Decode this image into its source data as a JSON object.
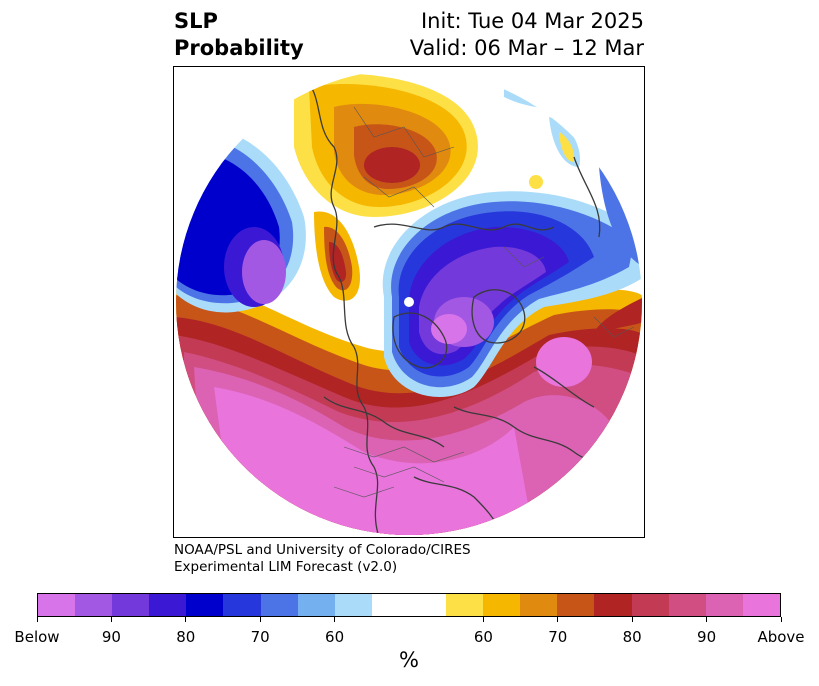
{
  "header": {
    "variable": "SLP",
    "field": "Probability",
    "init": "Init: Tue 04 Mar 2025",
    "valid": "Valid: 06 Mar – 12 Mar"
  },
  "credit": {
    "line1": "NOAA/PSL and University of Colorado/CIRES",
    "line2": "Experimental LIM Forecast (v2.0)"
  },
  "colorbar": {
    "units": "%",
    "below_colors": [
      "#d874ea",
      "#a358e4",
      "#7339da",
      "#3b19d4",
      "#0000cc",
      "#2638dc",
      "#4c74e6",
      "#74b0f0",
      "#aadcfa"
    ],
    "above_colors": [
      "#fde045",
      "#f5b700",
      "#e08a0f",
      "#c85518",
      "#b02424",
      "#c33a55",
      "#d04e82",
      "#dc62b4",
      "#e874dc"
    ],
    "ticks": [
      "Below",
      "90",
      "80",
      "70",
      "60",
      "60",
      "70",
      "80",
      "90",
      "Above"
    ]
  }
}
